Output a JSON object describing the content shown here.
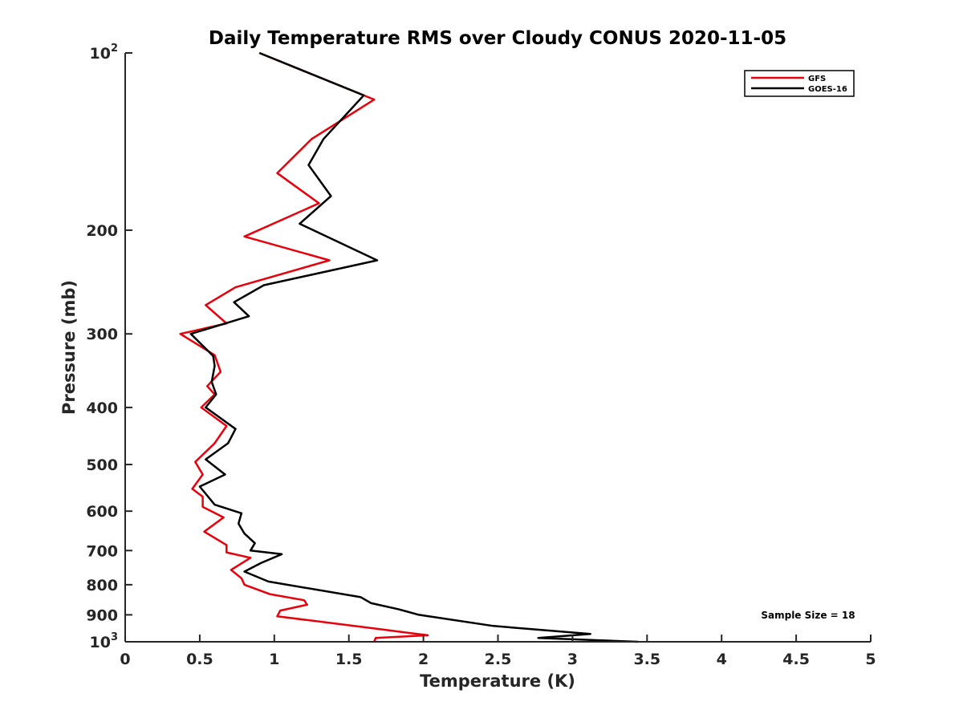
{
  "chart_data": {
    "type": "line",
    "title": "Daily Temperature RMS over Cloudy CONUS 2020-11-05",
    "xlabel": "Temperature (K)",
    "ylabel": "Pressure (mb)",
    "xlim": [
      0,
      5
    ],
    "ylim": [
      100,
      1000
    ],
    "y_scale": "log",
    "y_reversed": true,
    "grid": false,
    "legend_position": "top-right",
    "x_ticks": [
      {
        "value": 0,
        "label": "0"
      },
      {
        "value": 0.5,
        "label": "0.5"
      },
      {
        "value": 1,
        "label": "1"
      },
      {
        "value": 1.5,
        "label": "1.5"
      },
      {
        "value": 2,
        "label": "2"
      },
      {
        "value": 2.5,
        "label": "2.5"
      },
      {
        "value": 3,
        "label": "3"
      },
      {
        "value": 3.5,
        "label": "3.5"
      },
      {
        "value": 4,
        "label": "4"
      },
      {
        "value": 4.5,
        "label": "4.5"
      },
      {
        "value": 5,
        "label": "5"
      }
    ],
    "y_ticks": [
      {
        "value": 100,
        "base": "10",
        "exp": "2"
      },
      {
        "value": 200,
        "label": "200"
      },
      {
        "value": 300,
        "label": "300"
      },
      {
        "value": 400,
        "label": "400"
      },
      {
        "value": 500,
        "label": "500"
      },
      {
        "value": 600,
        "label": "600"
      },
      {
        "value": 700,
        "label": "700"
      },
      {
        "value": 800,
        "label": "800"
      },
      {
        "value": 900,
        "label": "900"
      },
      {
        "value": 1000,
        "base": "10",
        "exp": "3"
      }
    ],
    "series": [
      {
        "name": "GFS",
        "color": "#e8000b",
        "points": [
          [
            0.9,
            100
          ],
          [
            1.67,
            120
          ],
          [
            1.25,
            140
          ],
          [
            1.02,
            160
          ],
          [
            1.3,
            180
          ],
          [
            0.8,
            205
          ],
          [
            1.37,
            225
          ],
          [
            0.74,
            250
          ],
          [
            0.54,
            268
          ],
          [
            0.68,
            288
          ],
          [
            0.37,
            300
          ],
          [
            0.6,
            326
          ],
          [
            0.64,
            348
          ],
          [
            0.55,
            368
          ],
          [
            0.6,
            380
          ],
          [
            0.51,
            400
          ],
          [
            0.68,
            430
          ],
          [
            0.6,
            460
          ],
          [
            0.47,
            495
          ],
          [
            0.52,
            520
          ],
          [
            0.45,
            550
          ],
          [
            0.52,
            567
          ],
          [
            0.52,
            590
          ],
          [
            0.66,
            615
          ],
          [
            0.53,
            650
          ],
          [
            0.68,
            685
          ],
          [
            0.68,
            705
          ],
          [
            0.84,
            720
          ],
          [
            0.71,
            755
          ],
          [
            0.78,
            780
          ],
          [
            0.8,
            800
          ],
          [
            0.97,
            830
          ],
          [
            1.2,
            850
          ],
          [
            1.22,
            865
          ],
          [
            1.04,
            885
          ],
          [
            1.02,
            905
          ],
          [
            1.75,
            955
          ],
          [
            2.03,
            975
          ],
          [
            1.68,
            985
          ],
          [
            1.67,
            1000
          ]
        ]
      },
      {
        "name": "GOES-16",
        "color": "#000000",
        "points": [
          [
            0.9,
            100
          ],
          [
            1.6,
            118
          ],
          [
            1.33,
            140
          ],
          [
            1.23,
            155
          ],
          [
            1.38,
            175
          ],
          [
            1.17,
            195
          ],
          [
            1.69,
            225
          ],
          [
            0.93,
            248
          ],
          [
            0.73,
            265
          ],
          [
            0.83,
            280
          ],
          [
            0.44,
            300
          ],
          [
            0.59,
            327
          ],
          [
            0.6,
            340
          ],
          [
            0.58,
            362
          ],
          [
            0.61,
            380
          ],
          [
            0.54,
            400
          ],
          [
            0.74,
            435
          ],
          [
            0.69,
            460
          ],
          [
            0.54,
            490
          ],
          [
            0.67,
            520
          ],
          [
            0.5,
            545
          ],
          [
            0.6,
            585
          ],
          [
            0.78,
            605
          ],
          [
            0.76,
            630
          ],
          [
            0.8,
            655
          ],
          [
            0.87,
            680
          ],
          [
            0.84,
            700
          ],
          [
            1.05,
            710
          ],
          [
            0.91,
            735
          ],
          [
            0.8,
            760
          ],
          [
            0.96,
            790
          ],
          [
            1.58,
            840
          ],
          [
            1.65,
            860
          ],
          [
            1.83,
            880
          ],
          [
            1.97,
            900
          ],
          [
            2.47,
            940
          ],
          [
            3.12,
            970
          ],
          [
            2.77,
            985
          ],
          [
            3.44,
            1000
          ]
        ]
      }
    ],
    "annotations": [
      {
        "text": "Sample Size = 18",
        "position": "bottom-right"
      }
    ]
  }
}
